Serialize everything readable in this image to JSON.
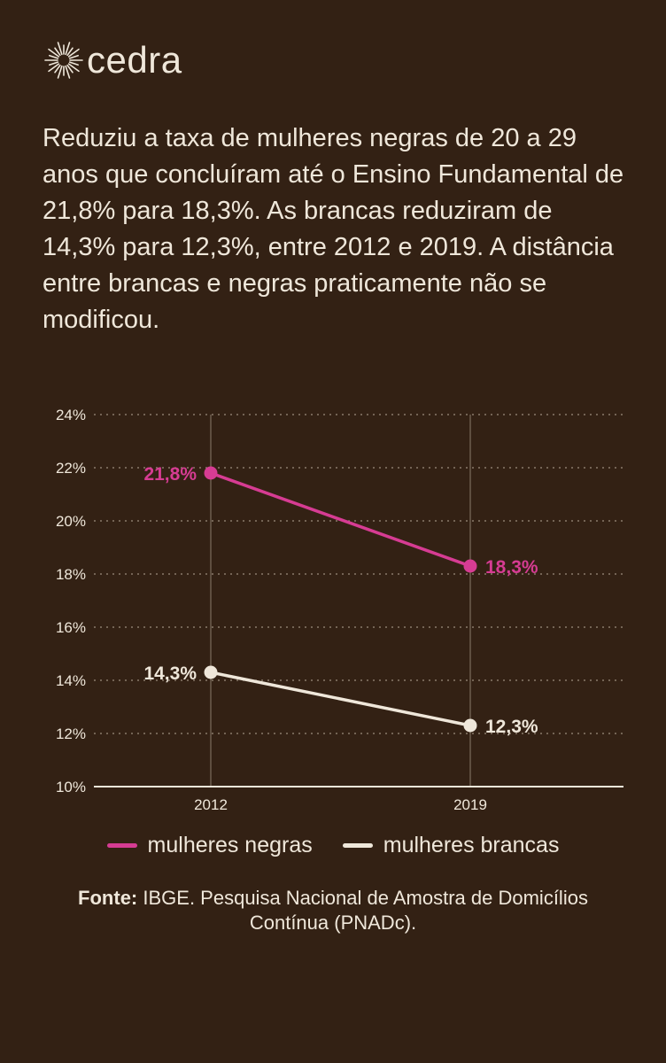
{
  "brand": {
    "name": "cedra",
    "logo_icon": "sunburst-icon"
  },
  "headline": "Reduziu a taxa de mulheres negras de 20 a 29 anos que concluíram até o Ensino Fundamental de 21,8% para 18,3%. As brancas reduziram de 14,3% para 12,3%, entre 2012 e 2019. A distância entre brancas e negras praticamente não se modificou.",
  "colors": {
    "background": "#332114",
    "text": "#efe7da",
    "negras": "#d63c93",
    "brancas": "#efe7da"
  },
  "chart_data": {
    "type": "line",
    "x": [
      "2012",
      "2019"
    ],
    "ylim": [
      10,
      24
    ],
    "y_ticks": [
      "10%",
      "12%",
      "14%",
      "16%",
      "18%",
      "20%",
      "22%",
      "24%"
    ],
    "y_tick_values": [
      10,
      12,
      14,
      16,
      18,
      20,
      22,
      24
    ],
    "grid": "horizontal dotted",
    "legend_position": "bottom",
    "series": [
      {
        "name": "mulheres negras",
        "color": "#d63c93",
        "values": [
          21.8,
          18.3
        ],
        "labels": [
          "21,8%",
          "18,3%"
        ]
      },
      {
        "name": "mulheres brancas",
        "color": "#efe7da",
        "values": [
          14.3,
          12.3
        ],
        "labels": [
          "14,3%",
          "12,3%"
        ]
      }
    ]
  },
  "source": {
    "label": "Fonte:",
    "text": "IBGE. Pesquisa Nacional de Amostra de Domicílios Contínua (PNADc)."
  }
}
